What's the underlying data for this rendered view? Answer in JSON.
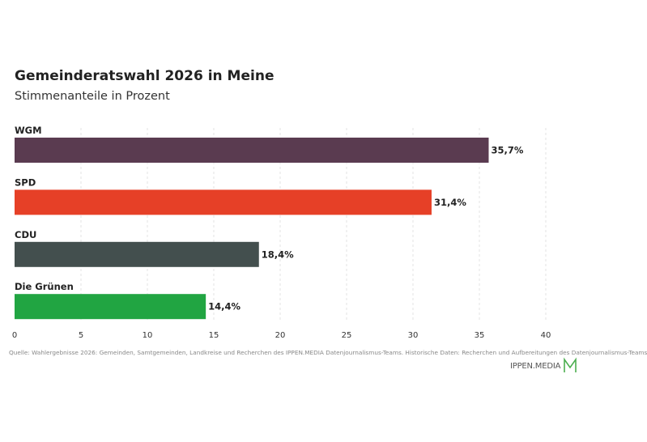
{
  "header": {
    "title": "Gemeinderatswahl 2026 in Meine",
    "subtitle": "Stimmenanteile in Prozent"
  },
  "chart_data": {
    "type": "bar",
    "orientation": "horizontal",
    "categories": [
      "WGM",
      "SPD",
      "CDU",
      "Die Grünen"
    ],
    "values": [
      35.7,
      31.4,
      18.4,
      14.4
    ],
    "value_labels": [
      "35,7%",
      "31,4%",
      "18,4%",
      "14,4%"
    ],
    "colors": [
      "#5a3b50",
      "#e64027",
      "#434f4e",
      "#21a542"
    ],
    "title": "Gemeinderatswahl 2026 in Meine",
    "subtitle": "Stimmenanteile in Prozent",
    "xlim": [
      0,
      40
    ],
    "xticks": [
      0,
      5,
      10,
      15,
      20,
      25,
      30,
      35,
      40
    ],
    "grid": "vertical-dashed",
    "legend": "none"
  },
  "footer": {
    "source": "Quelle: Wahlergebnisse 2026: Gemeinden, Samtgemeinden, Landkreise und Recherchen des IPPEN.MEDIA Datenjournalismus-Teams. Historische Daten: Recherchen und Aufbereitungen des Datenjournalismus-Teams",
    "brand": "IPPEN.MEDIA",
    "brand_icon": "ippen-media-m-logo-icon",
    "brand_color": "#4caf50"
  }
}
